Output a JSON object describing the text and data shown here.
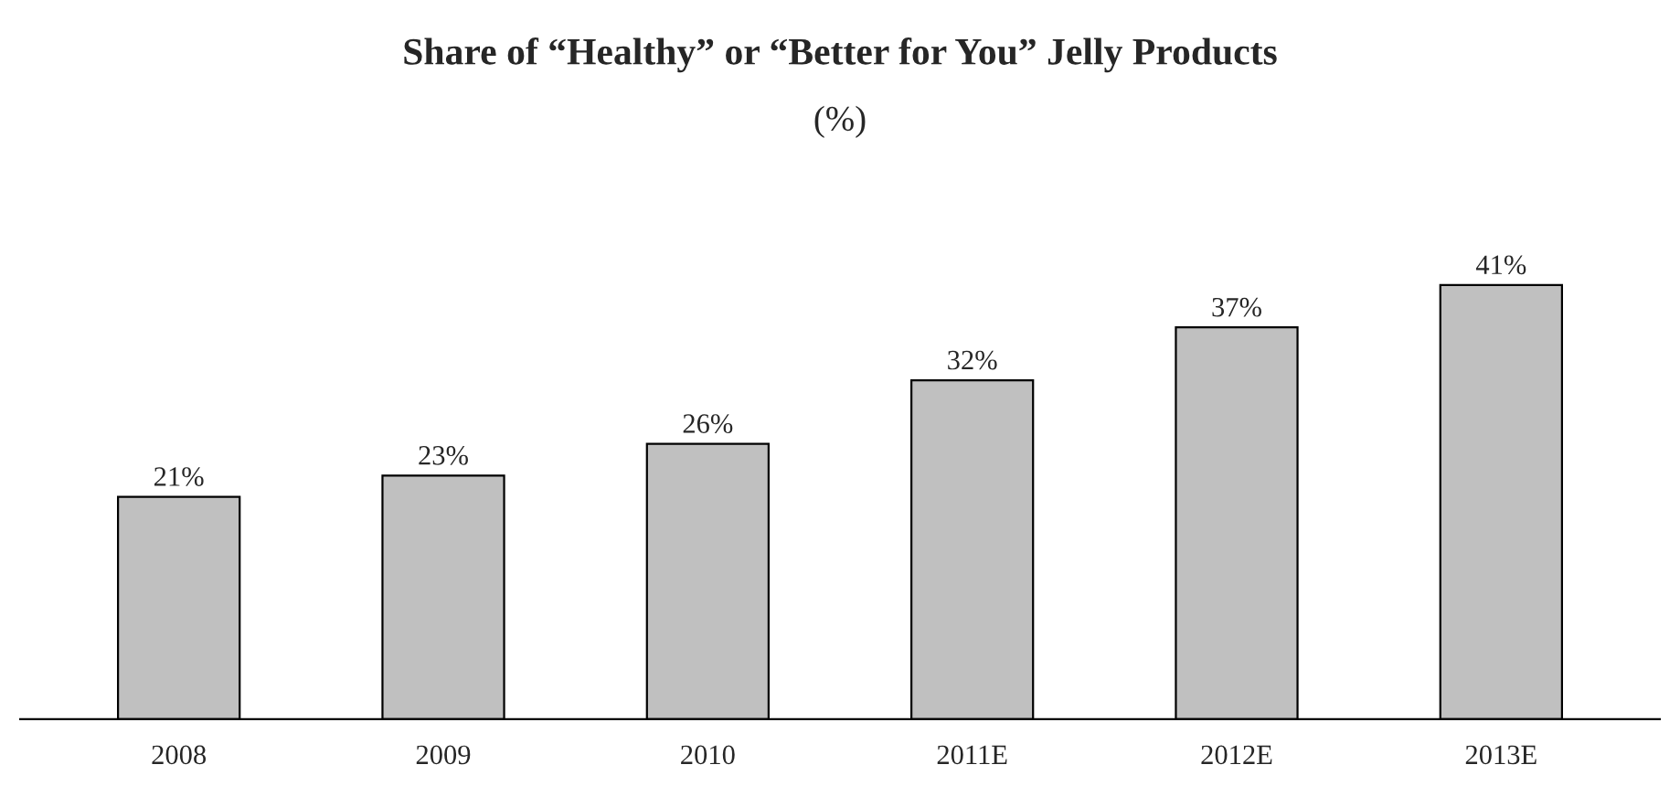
{
  "chart_data": {
    "type": "bar",
    "title": "Share of “Healthy” or “Better for You” Jelly Products",
    "subtitle": "(%)",
    "categories": [
      "2008",
      "2009",
      "2010",
      "2011E",
      "2012E",
      "2013E"
    ],
    "values": [
      21,
      23,
      26,
      32,
      37,
      41
    ],
    "value_labels": [
      "21%",
      "23%",
      "26%",
      "32%",
      "37%",
      "41%"
    ],
    "color": "#c0c0c0",
    "grid": false,
    "legend": false
  }
}
